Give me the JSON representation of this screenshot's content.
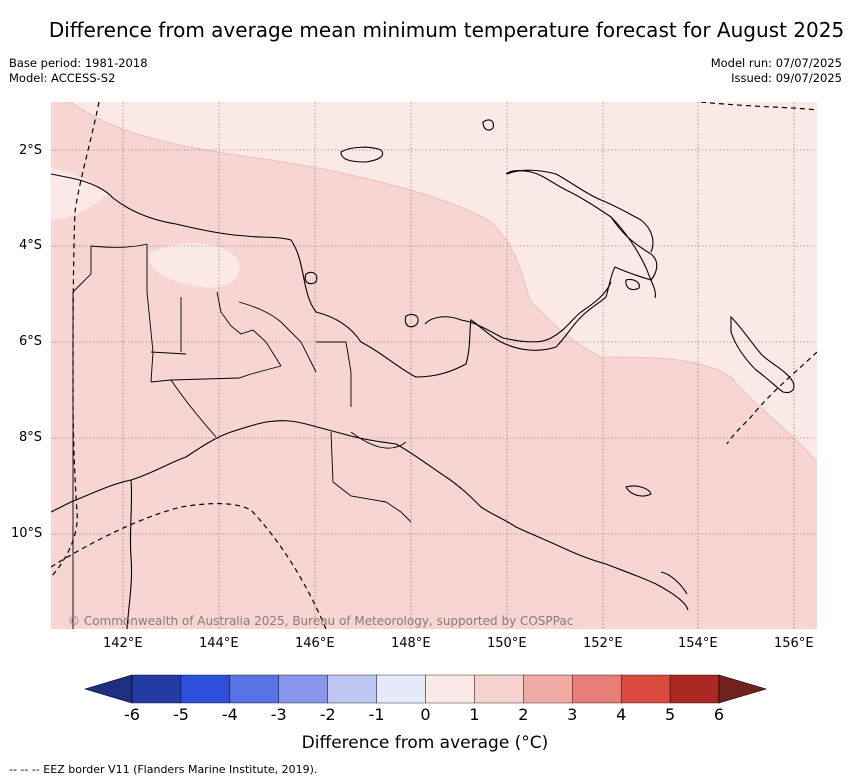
{
  "title": "Difference from average mean minimum temperature forecast for August 2025",
  "meta_left": {
    "base_period": "Base period: 1981-2018",
    "model": "Model: ACCESS-S2"
  },
  "meta_right": {
    "model_run": "Model run: 07/07/2025",
    "issued": "Issued: 09/07/2025"
  },
  "copyright": "© Commonwealth of Australia 2025, Bureau of Meteorology, supported by COSPPac",
  "lat_labels": [
    "2°S",
    "4°S",
    "6°S",
    "8°S",
    "10°S"
  ],
  "lon_labels": [
    "142°E",
    "144°E",
    "146°E",
    "148°E",
    "150°E",
    "152°E",
    "154°E",
    "156°E"
  ],
  "colorbar": {
    "title": "Difference from average (°C)",
    "ticks": [
      "-6",
      "-5",
      "-4",
      "-3",
      "-2",
      "-1",
      "0",
      "1",
      "2",
      "3",
      "4",
      "5",
      "6"
    ],
    "colors": [
      "#223ca3",
      "#2e4fdc",
      "#5a73e4",
      "#8795ea",
      "#bec6f3",
      "#e6eaf8",
      "#fbe9e7",
      "#f6d2ce",
      "#f0aaa4",
      "#e77f78",
      "#db4a3f",
      "#ab2822"
    ],
    "low_extend_color": "#1c2f80",
    "high_extend_color": "#71221d"
  },
  "map_colors": {
    "band_0_1": "#fbe9e7",
    "band_1_2": "#f6d5d2"
  },
  "footnote": "-- -- -- EEZ border V11 (Flanders Marine Institute, 2019)."
}
